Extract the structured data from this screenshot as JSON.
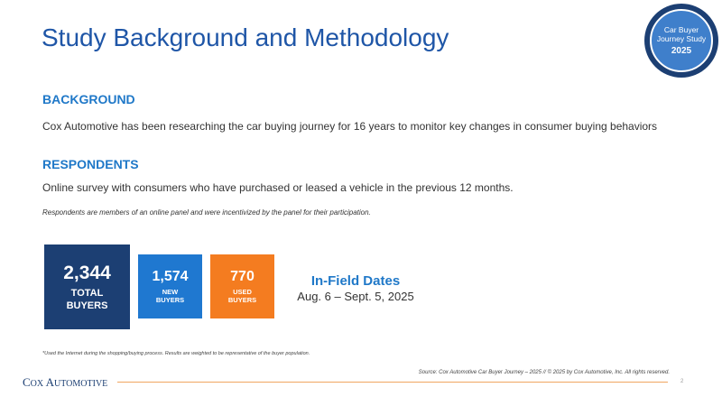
{
  "title": "Study Background and Methodology",
  "badge": {
    "line": "Car Buyer\nJourney Study",
    "year": "2025"
  },
  "background": {
    "heading": "BACKGROUND",
    "text": "Cox Automotive has been researching the car buying journey for 16 years to monitor key changes in consumer buying behaviors"
  },
  "respondents": {
    "heading": "RESPONDENTS",
    "text": "Online survey with consumers who have purchased or leased a vehicle in the previous 12 months.",
    "note": "Respondents are members of an online panel and were incentivized by the panel for their participation."
  },
  "stats": {
    "total": {
      "value": "2,344",
      "label": "TOTAL\nBUYERS"
    },
    "new": {
      "value": "1,574",
      "label": "NEW\nBUYERS"
    },
    "used": {
      "value": "770",
      "label": "USED\nBUYERS"
    }
  },
  "infield": {
    "heading": "In-Field Dates",
    "range": "Aug. 6 – Sept. 5, 2025"
  },
  "footnote": "*Used the Internet during the shopping/buying process. Results are weighted to be representative of the buyer population.",
  "source": "Source: Cox Automotive Car Buyer Journey – 2025 // © 2025 by Cox Automotive, Inc. All rights reserved.",
  "logo": {
    "first": "C",
    "first_rest": "OX ",
    "second": "A",
    "second_rest": "UTOMOTIVE"
  },
  "page_number": "2",
  "colors": {
    "navy": "#1c3f73",
    "blue": "#1f78d0",
    "orange": "#f47c20",
    "title_blue": "#1f56a7"
  }
}
